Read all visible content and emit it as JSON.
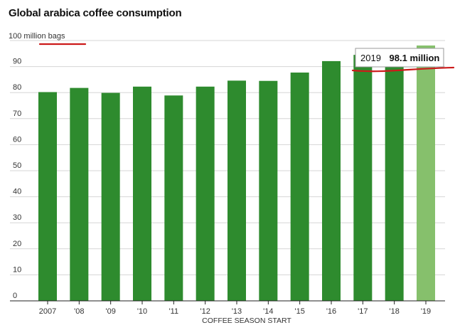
{
  "chart_data": {
    "type": "bar",
    "title": "Global arabica coffee consumption",
    "ylabel": "100 million bags",
    "xlabel": "COFFEE SEASON START",
    "categories": [
      "2007",
      "'08",
      "'09",
      "'10",
      "'11",
      "'12",
      "'13",
      "'14",
      "'15",
      "'16",
      "'17",
      "'18",
      "'19"
    ],
    "values": [
      80.2,
      81.8,
      79.9,
      82.3,
      78.9,
      82.3,
      84.6,
      84.5,
      87.7,
      92.1,
      94.5,
      94.7,
      98.1
    ],
    "yticks": [
      0,
      10,
      20,
      30,
      40,
      50,
      60,
      70,
      80,
      90
    ],
    "ylim": [
      0,
      100
    ],
    "grid": true,
    "colors": {
      "bar": "#2e8b2e",
      "highlight_bar": "#86c06c",
      "annotation_line": "#cc1a1a"
    },
    "highlight_index": 12,
    "annotation": {
      "year": "2019",
      "value": "98.1 million"
    }
  }
}
